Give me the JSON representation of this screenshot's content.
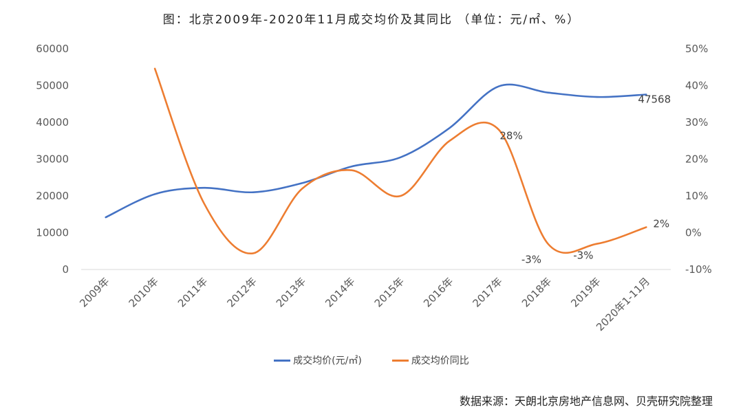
{
  "title": "图：北京2009年-2020年11月成交均价及其同比  （单位：元/㎡、%）",
  "source": "数据来源：天朗北京房地产信息网、贝壳研究院整理",
  "colors": {
    "price": "#4472C4",
    "yoy": "#ED7D31",
    "grid": "#D9D9D9",
    "text": "#595959"
  },
  "chart_data": {
    "type": "line",
    "categories": [
      "2009年",
      "2010年",
      "2011年",
      "2012年",
      "2013年",
      "2014年",
      "2015年",
      "2016年",
      "2017年",
      "2018年",
      "2019年",
      "2020年1-11月"
    ],
    "y_left": {
      "min": 0,
      "max": 60000,
      "ticks": [
        "0",
        "10000",
        "20000",
        "30000",
        "40000",
        "50000",
        "60000"
      ]
    },
    "y_right": {
      "min": -10,
      "max": 50,
      "ticks": [
        "-10%",
        "0%",
        "10%",
        "20%",
        "30%",
        "40%",
        "50%"
      ]
    },
    "grid": false,
    "legend_position": "bottom",
    "series": [
      {
        "name": "成交均价(元/㎡)",
        "axis": "left",
        "values": [
          14200,
          20500,
          22200,
          21000,
          23500,
          28000,
          30500,
          38500,
          49800,
          48100,
          46900,
          47568
        ],
        "point_labels": [
          null,
          null,
          null,
          null,
          null,
          null,
          null,
          null,
          null,
          null,
          null,
          "47568"
        ]
      },
      {
        "name": "成交均价同比",
        "axis": "right",
        "values": [
          null,
          44.6,
          8.0,
          -5.6,
          12.0,
          17.0,
          10.0,
          25.0,
          28.0,
          -3.0,
          -3.0,
          1.5
        ],
        "point_labels": [
          null,
          null,
          null,
          null,
          null,
          null,
          null,
          null,
          "28%",
          "-3%",
          "-3%",
          "2%"
        ]
      }
    ]
  }
}
